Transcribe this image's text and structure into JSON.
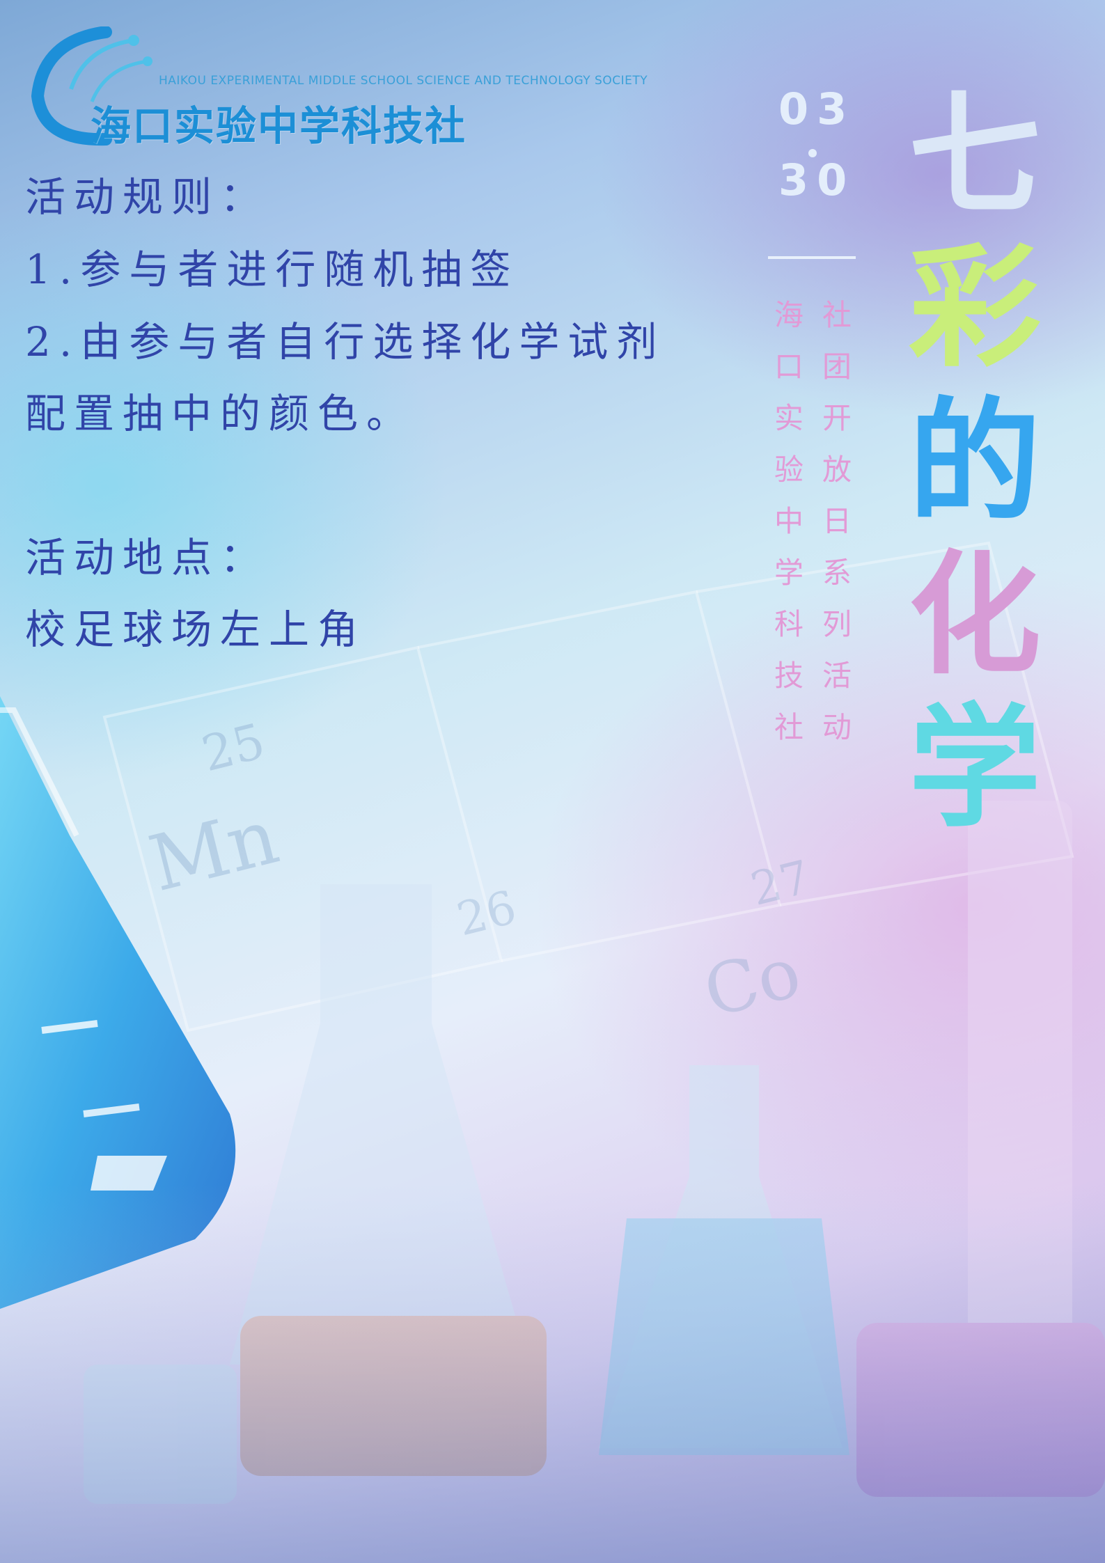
{
  "logo": {
    "english": "HAIKOU EXPERIMENTAL MIDDLE SCHOOL SCIENCE AND TECHNOLOGY SOCIETY",
    "chinese": "海口实验中学科技社"
  },
  "rules": {
    "title": "活动规则：",
    "line1": "1.参与者进行随机抽签",
    "line2a": "2.由参与者自行选择化学试剂",
    "line2b": "配置抽中的颜色。"
  },
  "location": {
    "title": "活动地点：",
    "text": "校足球场左上角"
  },
  "date": {
    "month": "03",
    "day": "30"
  },
  "subtitle": {
    "col_left": [
      "海",
      "口",
      "实",
      "验",
      "中",
      "学",
      "科",
      "技",
      "社"
    ],
    "col_right": [
      "社",
      "团",
      "开",
      "放",
      "日",
      "系",
      "列",
      "活",
      "动"
    ]
  },
  "title": {
    "chars": [
      "七",
      "彩",
      "的",
      "化",
      "学"
    ]
  },
  "colors": {
    "body_text": "#3044a8",
    "logo_blue": "#1c8fd6",
    "subtitle_pink": "#e29ad6",
    "title_white": "#dbe7f7",
    "title_green": "#c9ee7a",
    "title_blue": "#36a6ef",
    "title_pink": "#d79bd6",
    "title_cyan": "#5fd9e3"
  }
}
